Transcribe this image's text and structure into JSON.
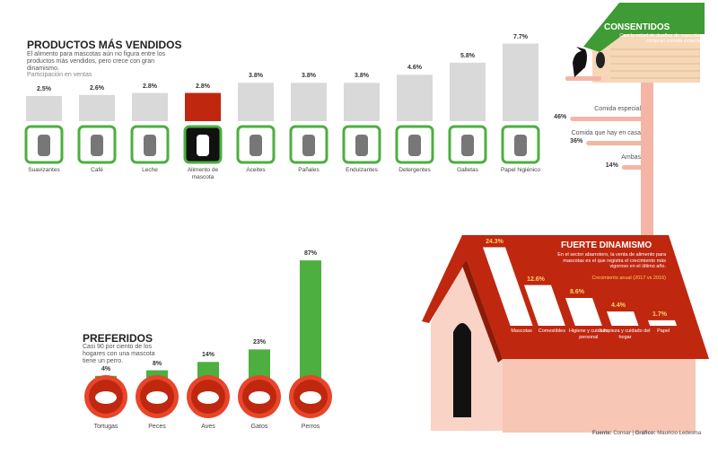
{
  "chart_data": [
    {
      "type": "bar",
      "title": "PRODUCTOS MÁS VENDIDOS",
      "subtitle": "El alimento para mascotas aún no figura entre los productos más vendidos, pero crece con gran dinamismo.",
      "ylabel": "Participación en ventas",
      "categories": [
        "Suavizantes",
        "Café",
        "Leche",
        "Alimento de mascota",
        "Aceites",
        "Pañales",
        "Endulzantes",
        "Detergentes",
        "Galletas",
        "Papel higiénico"
      ],
      "values": [
        2.5,
        2.6,
        2.8,
        2.8,
        3.8,
        3.8,
        3.8,
        4.6,
        5.8,
        7.7
      ],
      "value_labels": [
        "2.5%",
        "2.6%",
        "2.8%",
        "2.8%",
        "3.8%",
        "3.8%",
        "3.8%",
        "4.6%",
        "5.8%",
        "7.7%"
      ],
      "icons": [
        "softener-bottle-icon",
        "coffee-cup-icon",
        "milk-carton-icon",
        "pet-food-icon",
        "oil-bottle-icon",
        "diaper-icon",
        "sweetener-packet-icon",
        "detergent-bag-icon",
        "cookie-icon",
        "toilet-paper-icon"
      ],
      "highlight_index": 3,
      "colors": {
        "bar": "#d9d9d9",
        "highlight": "#c0270f",
        "icon_border": "#4caf3f"
      }
    },
    {
      "type": "bar",
      "orientation": "horizontal",
      "title": "CONSENTIDOS",
      "subtitle": "Casi la mitad de dueños de mascotas compran comida especial",
      "categories": [
        "Comida especial",
        "Comida que hay en casa",
        "Ambas"
      ],
      "values": [
        46,
        36,
        14
      ],
      "value_labels": [
        "46%",
        "36%",
        "14%"
      ],
      "colors": {
        "bar": "#f4b5a6",
        "roof": "#3f9b35"
      }
    },
    {
      "type": "bar",
      "title": "PREFERIDOS",
      "subtitle": "Casi 90 por ciento de los hogares con una mascota tiene un perro.",
      "categories": [
        "Tortugas",
        "Peces",
        "Aves",
        "Gatos",
        "Perros"
      ],
      "values": [
        4,
        8,
        14,
        23,
        87
      ],
      "value_labels": [
        "4%",
        "8%",
        "14%",
        "23%",
        "87%"
      ],
      "icons": [
        "turtle-icon",
        "fish-icon",
        "bird-icon",
        "cat-icon",
        "dog-icon"
      ],
      "colors": {
        "bar": "#4caf3f",
        "circle": "#c0270f"
      }
    },
    {
      "type": "bar",
      "title": "FUERTE DINAMISMO",
      "subtitle": "En el sector abarrotero, la venta de alimento para mascotas es el que registra el crecimiento más vigoroso en el último año.",
      "ylabel": "Crecimiento anual (2017 vs 2016)",
      "categories": [
        "Mascotas",
        "Comestibles",
        "Higiene y cuidado personal",
        "Limpieza y cuidado del hogar",
        "Papel"
      ],
      "values": [
        24.3,
        12.6,
        8.6,
        4.4,
        1.7
      ],
      "value_labels": [
        "24.3%",
        "12.6%",
        "8.6%",
        "4.4%",
        "1.7%"
      ],
      "colors": {
        "bar": "#ffffff",
        "roof": "#c0270f",
        "label": "#f5d36a"
      }
    }
  ],
  "footer": {
    "source_label": "Fuente:",
    "source": "Consar",
    "credit_label": "Gráfico:",
    "credit": "Mauricio Ledesma"
  }
}
